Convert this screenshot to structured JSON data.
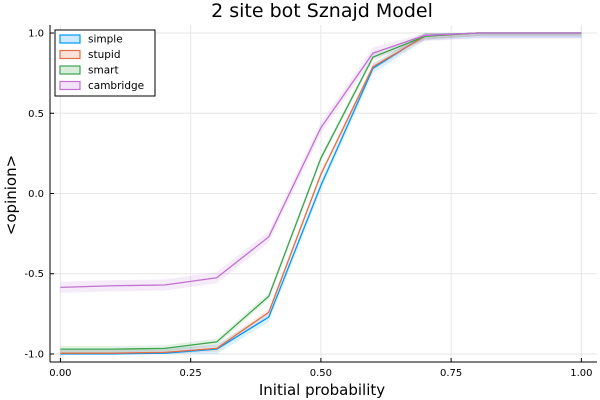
{
  "chart_data": {
    "type": "line",
    "title": "2 site bot Sznajd Model",
    "xlabel": "Initial probability",
    "ylabel": "<opinion>",
    "xlim": [
      -0.02,
      1.03
    ],
    "ylim": [
      -1.05,
      1.05
    ],
    "grid": true,
    "legend_position": "top-left",
    "x": [
      0.0,
      0.1,
      0.2,
      0.3,
      0.4,
      0.5,
      0.6,
      0.7,
      0.8,
      0.9,
      1.0
    ],
    "xticks": [
      0.0,
      0.25,
      0.5,
      0.75,
      1.0
    ],
    "xtick_labels": [
      "0.00",
      "0.25",
      "0.50",
      "0.75",
      "1.00"
    ],
    "yticks": [
      -1.0,
      -0.5,
      0.0,
      0.5,
      1.0
    ],
    "ytick_labels": [
      "-1.0",
      "-0.5",
      "0.0",
      "0.5",
      "1.0"
    ],
    "series": [
      {
        "name": "simple",
        "color": "#009af9",
        "ribbon": 0.03,
        "values": [
          -1.0,
          -1.0,
          -0.995,
          -0.97,
          -0.77,
          0.05,
          0.78,
          0.985,
          1.0,
          1.0,
          1.0
        ]
      },
      {
        "name": "stupid",
        "color": "#e26f46",
        "ribbon": 0.02,
        "values": [
          -0.995,
          -0.995,
          -0.99,
          -0.965,
          -0.74,
          0.12,
          0.79,
          0.98,
          1.0,
          1.0,
          1.0
        ]
      },
      {
        "name": "smart",
        "color": "#3da44d",
        "ribbon": 0.02,
        "values": [
          -0.97,
          -0.97,
          -0.965,
          -0.925,
          -0.64,
          0.22,
          0.85,
          0.98,
          1.0,
          1.0,
          1.0
        ]
      },
      {
        "name": "cambridge",
        "color": "#c271d2",
        "ribbon": 0.035,
        "values": [
          -0.585,
          -0.575,
          -0.57,
          -0.525,
          -0.27,
          0.41,
          0.875,
          0.985,
          1.0,
          1.0,
          1.0
        ]
      }
    ]
  }
}
